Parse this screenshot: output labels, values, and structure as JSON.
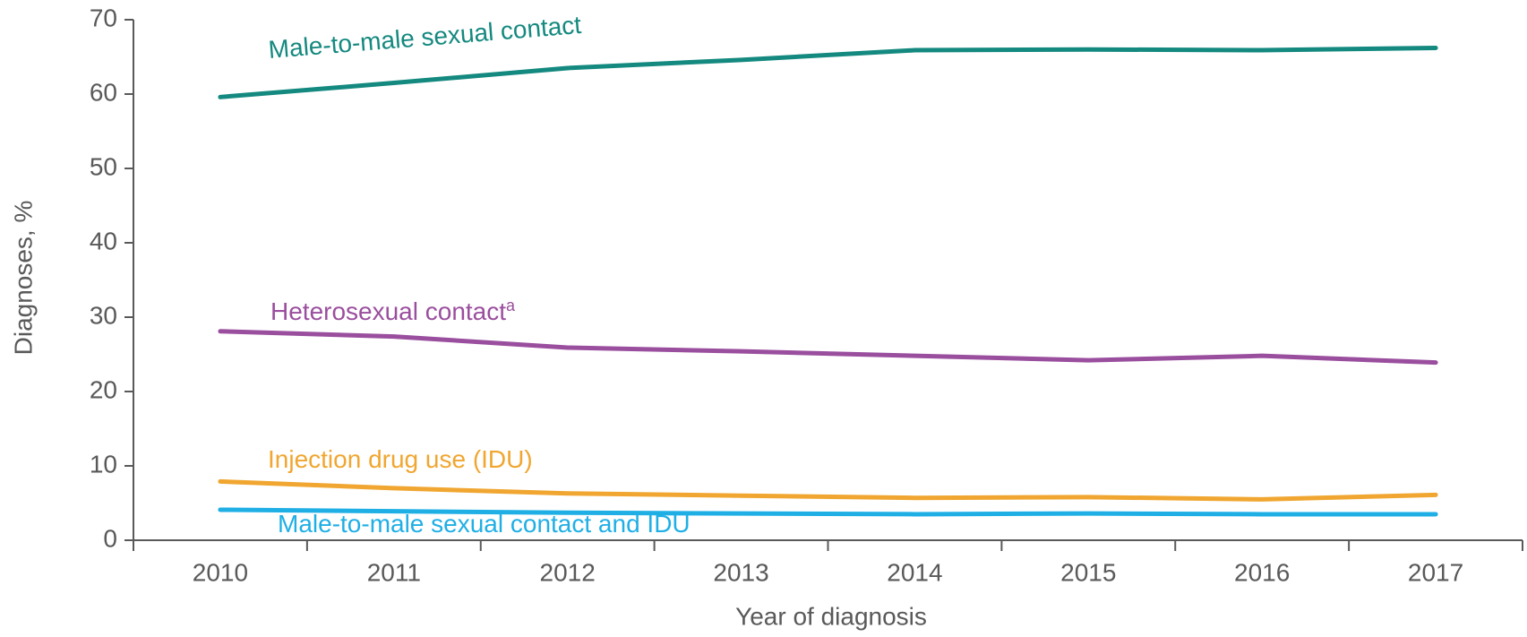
{
  "chart_data": {
    "type": "line",
    "x_label": "Year of diagnosis",
    "y_label": "Diagnoses, %",
    "categories": [
      "2010",
      "2011",
      "2012",
      "2013",
      "2014",
      "2015",
      "2016",
      "2017"
    ],
    "series": [
      {
        "name": "Male-to-male sexual contact",
        "color": "#14897f",
        "values": [
          59.6,
          61.5,
          63.5,
          64.6,
          65.9,
          66.0,
          65.9,
          66.2
        ]
      },
      {
        "name": "Heterosexual contact",
        "superscript": "a",
        "color": "#9a4e9e",
        "values": [
          28.1,
          27.4,
          25.9,
          25.4,
          24.8,
          24.2,
          24.8,
          23.9
        ]
      },
      {
        "name": "Injection drug use (IDU)",
        "color": "#f0a630",
        "values": [
          7.9,
          7.0,
          6.3,
          6.0,
          5.7,
          5.8,
          5.5,
          6.1
        ]
      },
      {
        "name": "Male-to-male sexual contact and IDU",
        "color": "#1fafe5",
        "values": [
          4.1,
          3.9,
          3.7,
          3.6,
          3.5,
          3.6,
          3.5,
          3.5
        ]
      }
    ],
    "ylim": [
      0,
      70
    ],
    "yticks": [
      0,
      10,
      20,
      30,
      40,
      50,
      60,
      70
    ],
    "grid": false
  }
}
